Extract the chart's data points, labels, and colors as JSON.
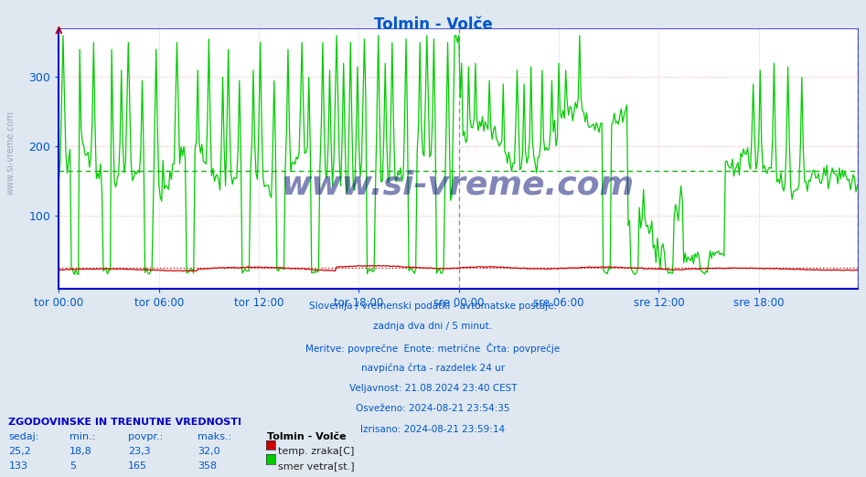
{
  "title": "Tolmin - Volče",
  "title_color": "#0055cc",
  "bg_color": "#dfe8f0",
  "plot_bg_color": "#ffffff",
  "xlim": [
    0,
    575
  ],
  "ylim": [
    -5,
    370
  ],
  "yticks": [
    100,
    200,
    300
  ],
  "xtick_labels": [
    "tor 00:00",
    "tor 06:00",
    "tor 12:00",
    "tor 18:00",
    "sre 00:00",
    "sre 06:00",
    "sre 12:00",
    "sre 18:00"
  ],
  "xtick_positions": [
    0,
    72,
    144,
    216,
    288,
    360,
    432,
    504
  ],
  "vline_midnight_color": "#888888",
  "vline_end_color": "#cc00cc",
  "hline_temp_val": 25.0,
  "hline_wind_val": 165,
  "hline_temp_color": "#cc0000",
  "hline_wind_color": "#00aa00",
  "temp_color": "#cc0000",
  "wind_color": "#00cc00",
  "axis_color": "#0000cc",
  "tick_color": "#0055cc",
  "grid_color_h": "#ffaaaa",
  "grid_color_v": "#ccccdd",
  "watermark": "www.si-vreme.com",
  "watermark_color": "#1a237e",
  "subtitle_color": "#0055cc",
  "subtitle_lines": [
    "Slovenija / vremenski podatki - avtomatske postaje.",
    "zadnja dva dni / 5 minut.",
    "Meritve: povprečne  Enote: metrične  Črta: povprečje",
    "navpična črta - razdelek 24 ur",
    "Veljavnost: 21.08.2024 23:40 CEST",
    "Osveženo: 2024-08-21 23:54:35",
    "Izrisano: 2024-08-21 23:59:14"
  ],
  "table_header": "ZGODOVINSKE IN TRENUTNE VREDNOSTI",
  "table_cols": [
    "sedaj:",
    "min.:",
    "povpr.:",
    "maks.:"
  ],
  "table_station": "Tolmin - Volče",
  "table_rows": [
    {
      "values": [
        "25,2",
        "18,8",
        "23,3",
        "32,0"
      ],
      "label": "temp. zraka[C]",
      "color": "#cc0000"
    },
    {
      "values": [
        "133",
        "5",
        "165",
        "358"
      ],
      "label": "smer vetra[st.]",
      "color": "#00cc00"
    }
  ],
  "n_points": 576
}
